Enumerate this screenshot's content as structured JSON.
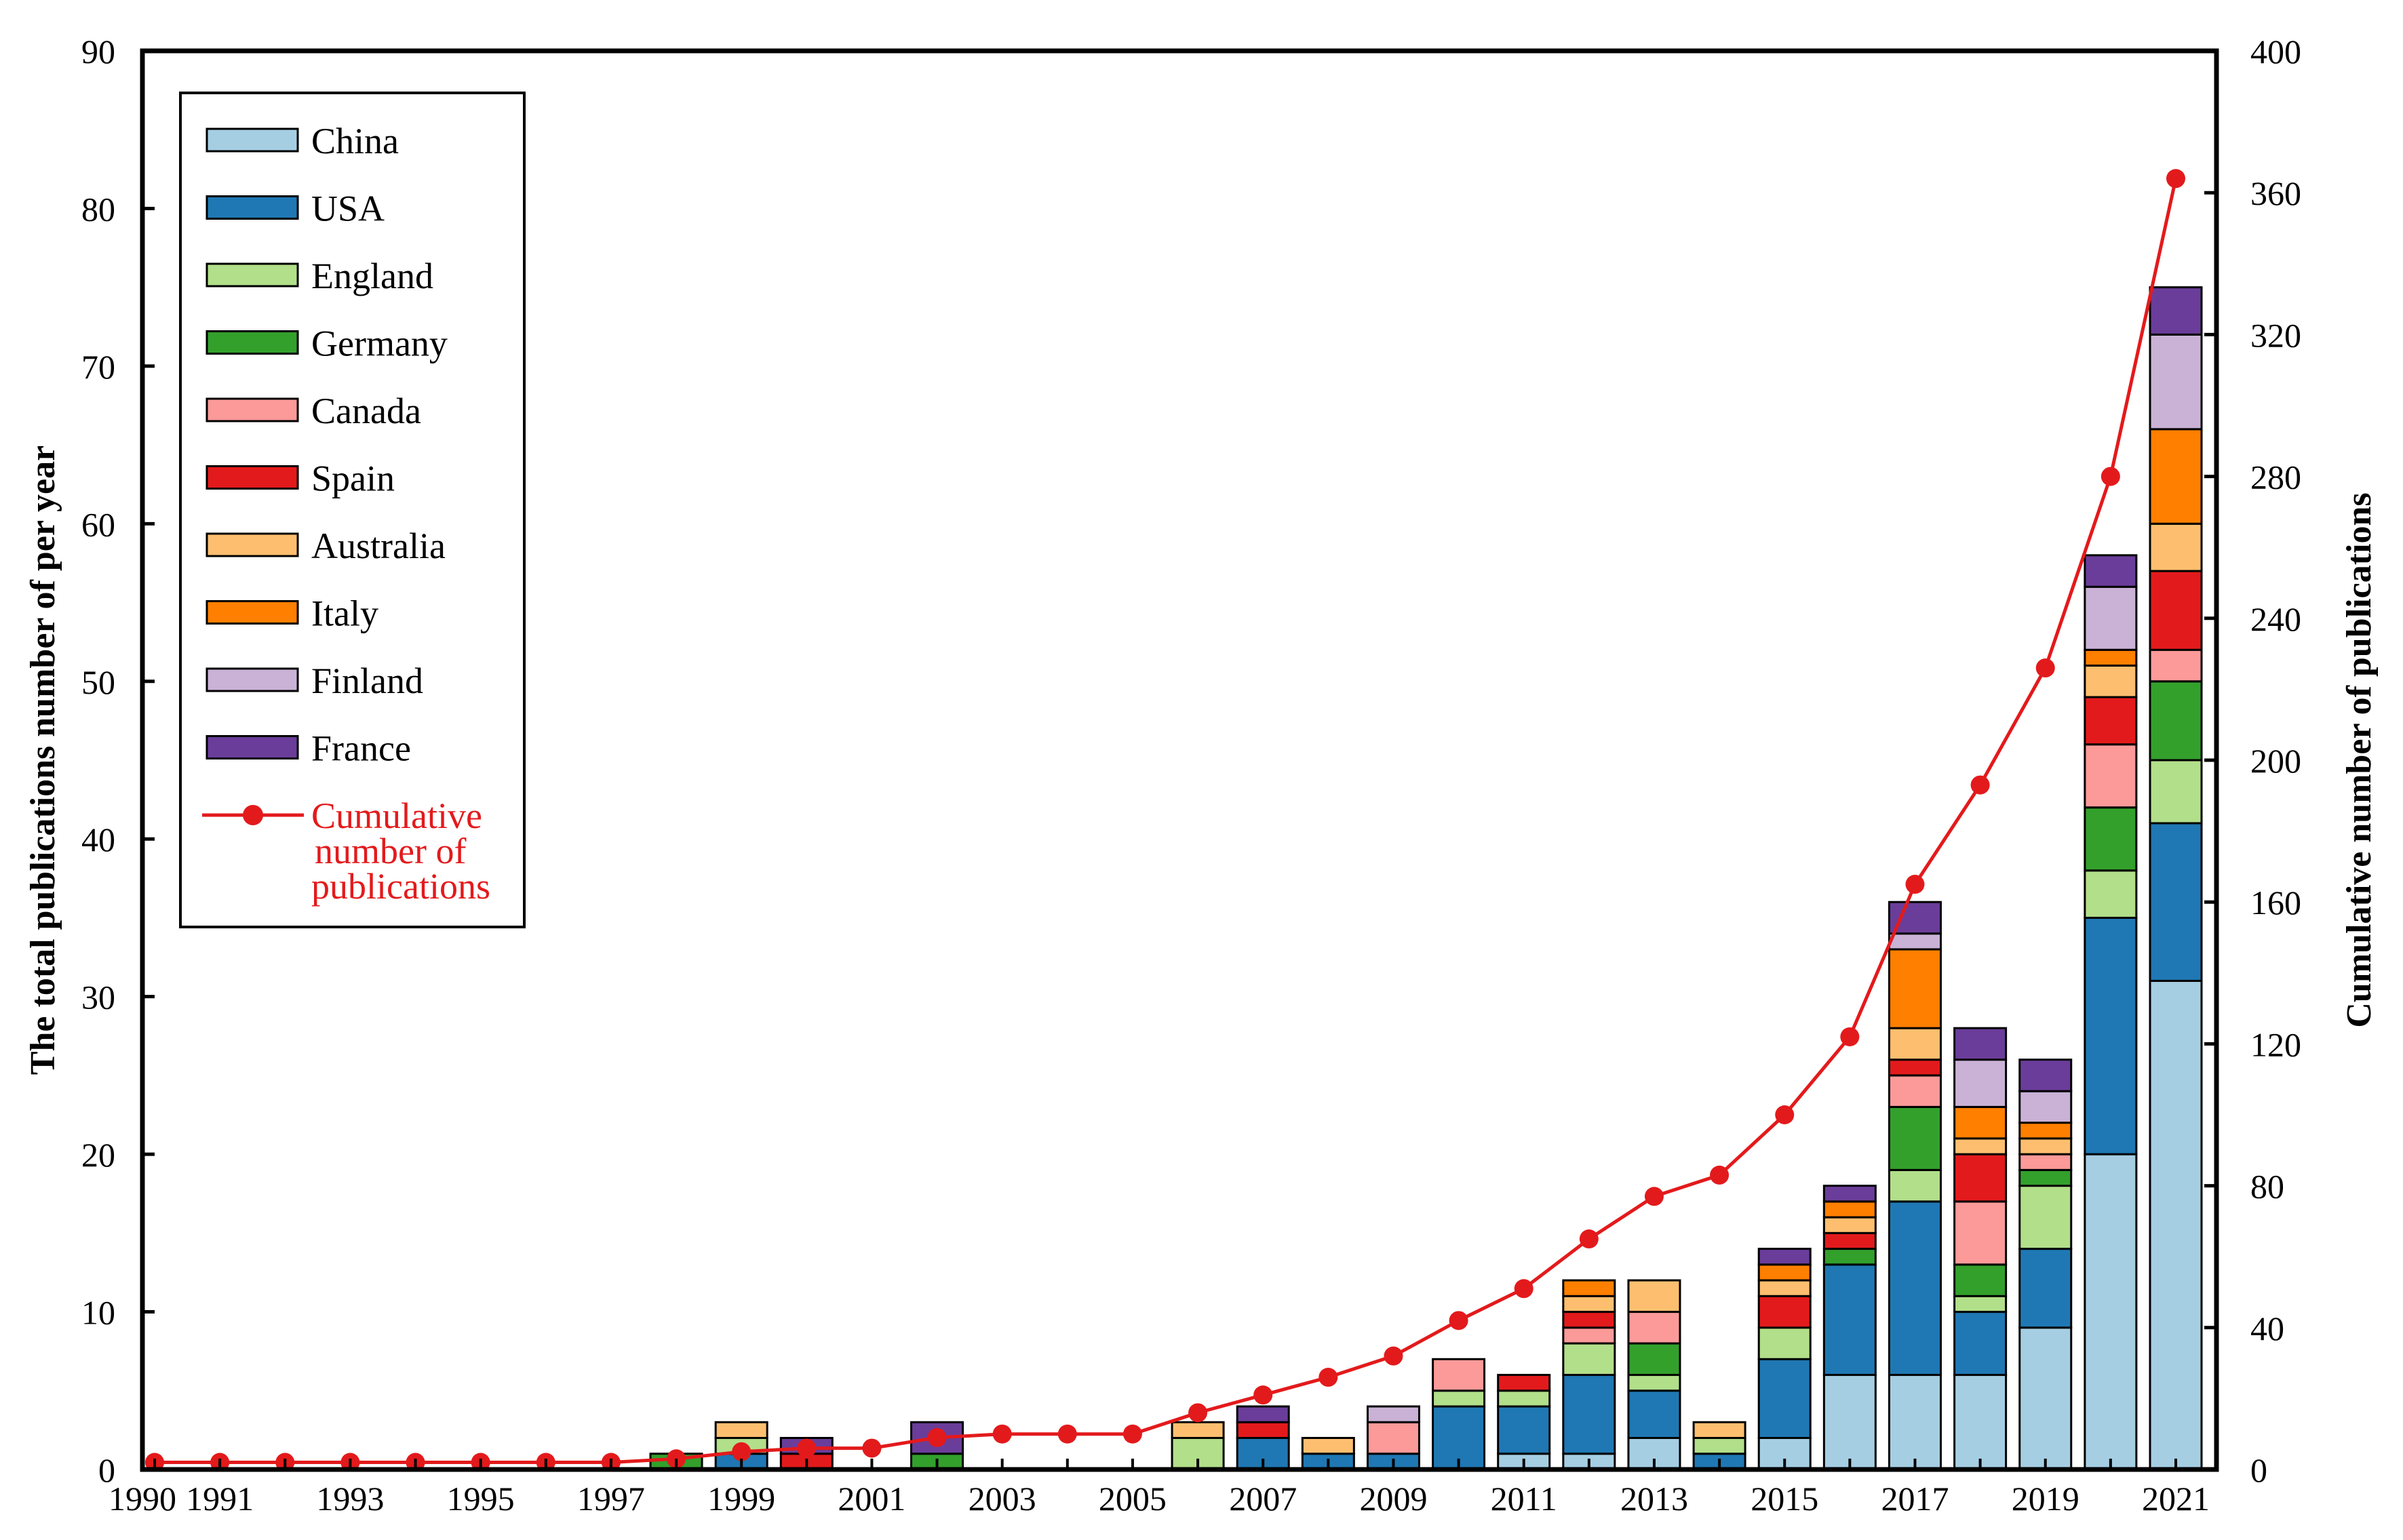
{
  "chart_data": {
    "type": "bar",
    "stacked": true,
    "x_axis_ticks": [
      "1990",
      "1991",
      "1993",
      "1995",
      "1997",
      "1999",
      "2001",
      "2003",
      "2005",
      "2007",
      "2009",
      "2011",
      "2013",
      "2015",
      "2017",
      "2019",
      "2021"
    ],
    "categories": [
      1990,
      1991,
      1992,
      1993,
      1994,
      1995,
      1996,
      1997,
      1998,
      1999,
      2000,
      2001,
      2002,
      2003,
      2004,
      2005,
      2006,
      2007,
      2008,
      2009,
      2010,
      2011,
      2012,
      2013,
      2014,
      2015,
      2016,
      2017,
      2018,
      2019,
      2020,
      2021
    ],
    "series": [
      {
        "name": "China",
        "color": "#a6cee3",
        "values": [
          0,
          0,
          0,
          0,
          0,
          0,
          0,
          0,
          0,
          0,
          0,
          0,
          0,
          0,
          0,
          0,
          0,
          0,
          0,
          0,
          0,
          1,
          1,
          2,
          0,
          2,
          6,
          6,
          6,
          9,
          20,
          31
        ]
      },
      {
        "name": "USA",
        "color": "#1f78b4",
        "values": [
          0,
          0,
          0,
          0,
          0,
          0,
          0,
          0,
          0,
          1,
          0,
          0,
          0,
          0,
          0,
          0,
          0,
          2,
          1,
          1,
          4,
          3,
          5,
          3,
          1,
          5,
          7,
          11,
          4,
          5,
          15,
          10
        ]
      },
      {
        "name": "England",
        "color": "#b2df8a",
        "values": [
          0,
          0,
          0,
          0,
          0,
          0,
          0,
          0,
          0,
          1,
          0,
          0,
          0,
          0,
          0,
          0,
          2,
          0,
          0,
          0,
          1,
          1,
          2,
          1,
          1,
          2,
          0,
          2,
          1,
          4,
          3,
          4
        ]
      },
      {
        "name": "Germany",
        "color": "#33a02c",
        "values": [
          0,
          0,
          0,
          0,
          0,
          0,
          0,
          0,
          1,
          0,
          0,
          0,
          1,
          0,
          0,
          0,
          0,
          0,
          0,
          0,
          0,
          0,
          0,
          2,
          0,
          0,
          1,
          4,
          2,
          1,
          4,
          5
        ]
      },
      {
        "name": "Canada",
        "color": "#fb9a99",
        "values": [
          0,
          0,
          0,
          0,
          0,
          0,
          0,
          0,
          0,
          0,
          0,
          0,
          0,
          0,
          0,
          0,
          0,
          0,
          0,
          2,
          2,
          0,
          1,
          2,
          0,
          0,
          0,
          2,
          4,
          1,
          4,
          2
        ]
      },
      {
        "name": "Spain",
        "color": "#e31a1c",
        "values": [
          0,
          0,
          0,
          0,
          0,
          0,
          0,
          0,
          0,
          0,
          1,
          0,
          0,
          0,
          0,
          0,
          0,
          1,
          0,
          0,
          0,
          1,
          1,
          0,
          0,
          2,
          1,
          1,
          3,
          0,
          3,
          5
        ]
      },
      {
        "name": "Australia",
        "color": "#fdbf6f",
        "values": [
          0,
          0,
          0,
          0,
          0,
          0,
          0,
          0,
          0,
          1,
          0,
          0,
          0,
          0,
          0,
          0,
          1,
          0,
          1,
          0,
          0,
          0,
          1,
          2,
          1,
          1,
          1,
          2,
          1,
          1,
          2,
          3
        ]
      },
      {
        "name": "Italy",
        "color": "#ff7f00",
        "values": [
          0,
          0,
          0,
          0,
          0,
          0,
          0,
          0,
          0,
          0,
          0,
          0,
          0,
          0,
          0,
          0,
          0,
          0,
          0,
          0,
          0,
          0,
          1,
          0,
          0,
          1,
          1,
          5,
          2,
          1,
          1,
          6
        ]
      },
      {
        "name": "Finland",
        "color": "#cab2d6",
        "values": [
          0,
          0,
          0,
          0,
          0,
          0,
          0,
          0,
          0,
          0,
          0,
          0,
          0,
          0,
          0,
          0,
          0,
          0,
          0,
          1,
          0,
          0,
          0,
          0,
          0,
          0,
          0,
          1,
          3,
          2,
          4,
          6
        ]
      },
      {
        "name": "France",
        "color": "#6a3d9a",
        "values": [
          0,
          0,
          0,
          0,
          0,
          0,
          0,
          0,
          0,
          0,
          1,
          0,
          2,
          0,
          0,
          0,
          0,
          1,
          0,
          0,
          0,
          0,
          0,
          0,
          0,
          1,
          1,
          2,
          2,
          2,
          2,
          3
        ]
      }
    ],
    "cumulative": {
      "name": "Cumulative number of publications",
      "legend_lines": [
        "Cumulative",
        "number of",
        "publications"
      ],
      "color": "#e31a1c",
      "x": [
        1990,
        1991,
        1992,
        1993,
        1994,
        1995,
        1996,
        1997,
        1998,
        1999,
        2000,
        2001,
        2002,
        2003,
        2004,
        2005,
        2006,
        2007,
        2008,
        2009,
        2010,
        2011,
        2012,
        2013,
        2014,
        2015,
        2016,
        2017,
        2018,
        2019,
        2020,
        2021
      ],
      "values": [
        2,
        2,
        2,
        2,
        2,
        2,
        2,
        2,
        3,
        5,
        6,
        6,
        9,
        10,
        10,
        10,
        16,
        21,
        26,
        32,
        42,
        51,
        65,
        77,
        83,
        100,
        122,
        165,
        193,
        226,
        280,
        364
      ]
    },
    "xlim": [
      1990,
      2021
    ],
    "ylim": [
      0,
      90
    ],
    "y_ticks": [
      0,
      10,
      20,
      30,
      40,
      50,
      60,
      70,
      80,
      90
    ],
    "y2lim": [
      0,
      400
    ],
    "y2_ticks": [
      0,
      40,
      80,
      120,
      160,
      200,
      240,
      280,
      320,
      360,
      400
    ],
    "ylabel": "The total publications number of per year",
    "y2label": "Cumulative number of publications",
    "legend_position": "top-left"
  }
}
